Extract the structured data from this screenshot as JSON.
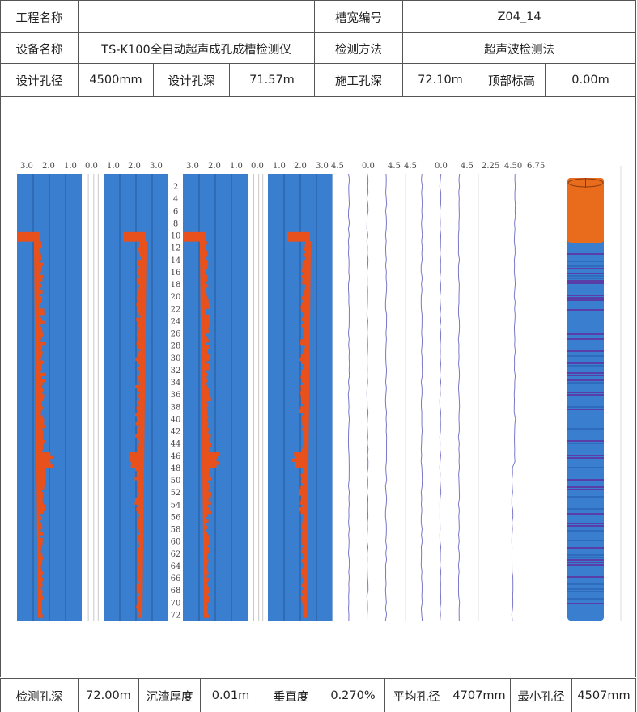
{
  "header": {
    "project_label": "工程名称",
    "project_value": "",
    "slot_no_label": "槽宽编号",
    "slot_no_value": "Z04_14",
    "device_label": "设备名称",
    "device_value": "TS-K100全自动超声成孔成槽检测仪",
    "method_label": "检测方法",
    "method_value": "超声波检测法",
    "design_dia_label": "设计孔径",
    "design_dia_value": "4500mm",
    "design_depth_label": "设计孔深",
    "design_depth_value": "71.57m",
    "const_depth_label": "施工孔深",
    "const_depth_value": "72.10m",
    "top_elev_label": "顶部标高",
    "top_elev_value": "0.00m"
  },
  "footer": {
    "det_depth_label": "检测孔深",
    "det_depth_value": "72.00m",
    "sediment_label": "沉渣厚度",
    "sediment_value": "0.01m",
    "vertical_label": "垂直度",
    "vertical_value": "0.270%",
    "avg_dia_label": "平均孔径",
    "avg_dia_value": "4707mm",
    "min_dia_label": "最小孔径",
    "min_dia_value": "4507mm"
  },
  "chart_data": {
    "type": "table",
    "wave_axis_labels": [
      "3.0",
      "2.0",
      "1.0",
      "0.0",
      "1.0",
      "2.0",
      "3.0"
    ],
    "line_axis_1": [
      "4.5",
      "0.0",
      "4.5"
    ],
    "line_axis_2": [
      "4.5",
      "0.0",
      "4.5"
    ],
    "line_axis_3": [
      "2.25",
      "4.50",
      "6.75"
    ],
    "depth_ticks": [
      2,
      4,
      6,
      8,
      10,
      12,
      14,
      16,
      18,
      20,
      22,
      24,
      26,
      28,
      30,
      32,
      34,
      36,
      38,
      40,
      42,
      44,
      46,
      48,
      50,
      52,
      54,
      56,
      58,
      60,
      62,
      64,
      66,
      68,
      70,
      72
    ],
    "depth_range": [
      0,
      73
    ],
    "colors": {
      "blue": "#3a7fcf",
      "orange": "#e8501c",
      "cyl_top": "#e86c1c",
      "line": "#7a78c8"
    }
  }
}
